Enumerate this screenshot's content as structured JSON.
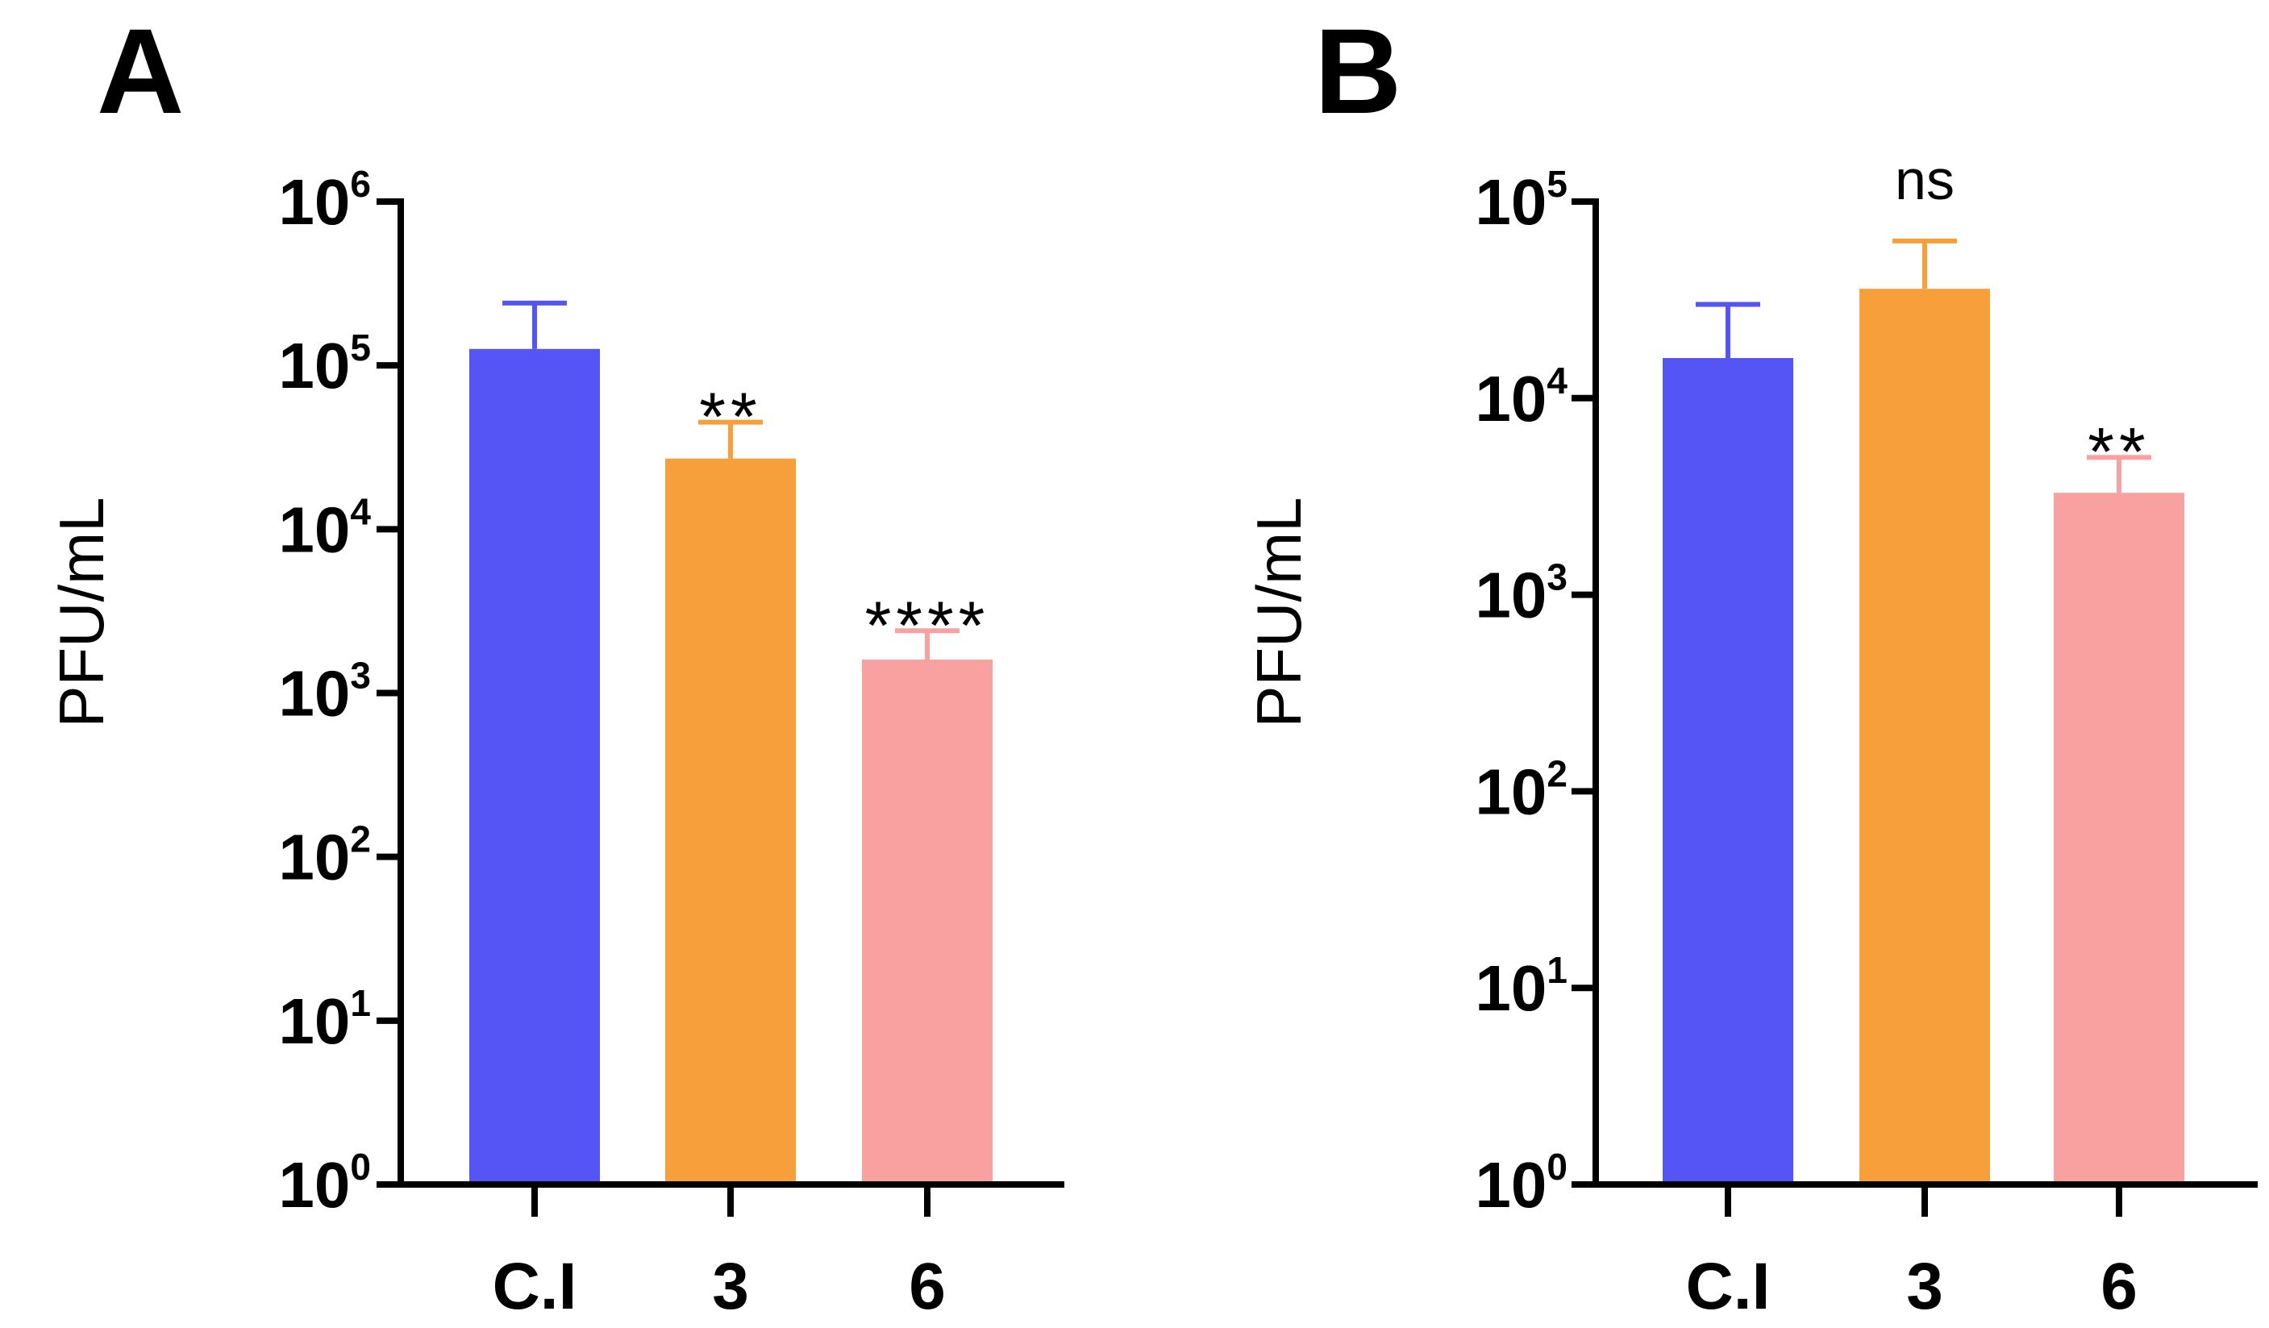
{
  "chart_data": [
    {
      "panel": "A",
      "type": "bar",
      "yscale": "log",
      "ylabel": "PFU/mL",
      "xlabel": "",
      "ylim": [
        1,
        1000000
      ],
      "ticks": [
        {
          "base": "10",
          "exp": "0",
          "value": 1
        },
        {
          "base": "10",
          "exp": "1",
          "value": 10
        },
        {
          "base": "10",
          "exp": "2",
          "value": 100
        },
        {
          "base": "10",
          "exp": "3",
          "value": 1000
        },
        {
          "base": "10",
          "exp": "4",
          "value": 10000
        },
        {
          "base": "10",
          "exp": "5",
          "value": 100000
        },
        {
          "base": "10",
          "exp": "6",
          "value": 1000000
        }
      ],
      "categories": [
        "C.I",
        "3",
        "6"
      ],
      "values": [
        126000,
        27000,
        1600
      ],
      "errors_upper": [
        240000,
        45000,
        2400
      ],
      "significance": [
        "",
        "**",
        "****"
      ],
      "colors": [
        "#5555f5",
        "#f7a03b",
        "#f9a0a0"
      ]
    },
    {
      "panel": "B",
      "type": "bar",
      "yscale": "log",
      "ylabel": "PFU/mL",
      "xlabel": "",
      "ylim": [
        1,
        100000
      ],
      "ticks": [
        {
          "base": "10",
          "exp": "0",
          "value": 1
        },
        {
          "base": "10",
          "exp": "1",
          "value": 10
        },
        {
          "base": "10",
          "exp": "2",
          "value": 100
        },
        {
          "base": "10",
          "exp": "3",
          "value": 1000
        },
        {
          "base": "10",
          "exp": "4",
          "value": 10000
        },
        {
          "base": "10",
          "exp": "5",
          "value": 100000
        }
      ],
      "categories": [
        "C.I",
        "3",
        "6"
      ],
      "values": [
        16000,
        36000,
        3300
      ],
      "errors_upper": [
        30000,
        63000,
        5000
      ],
      "significance": [
        "",
        "ns",
        "**"
      ],
      "colors": [
        "#5555f5",
        "#f7a03b",
        "#f9a0a0"
      ]
    }
  ]
}
